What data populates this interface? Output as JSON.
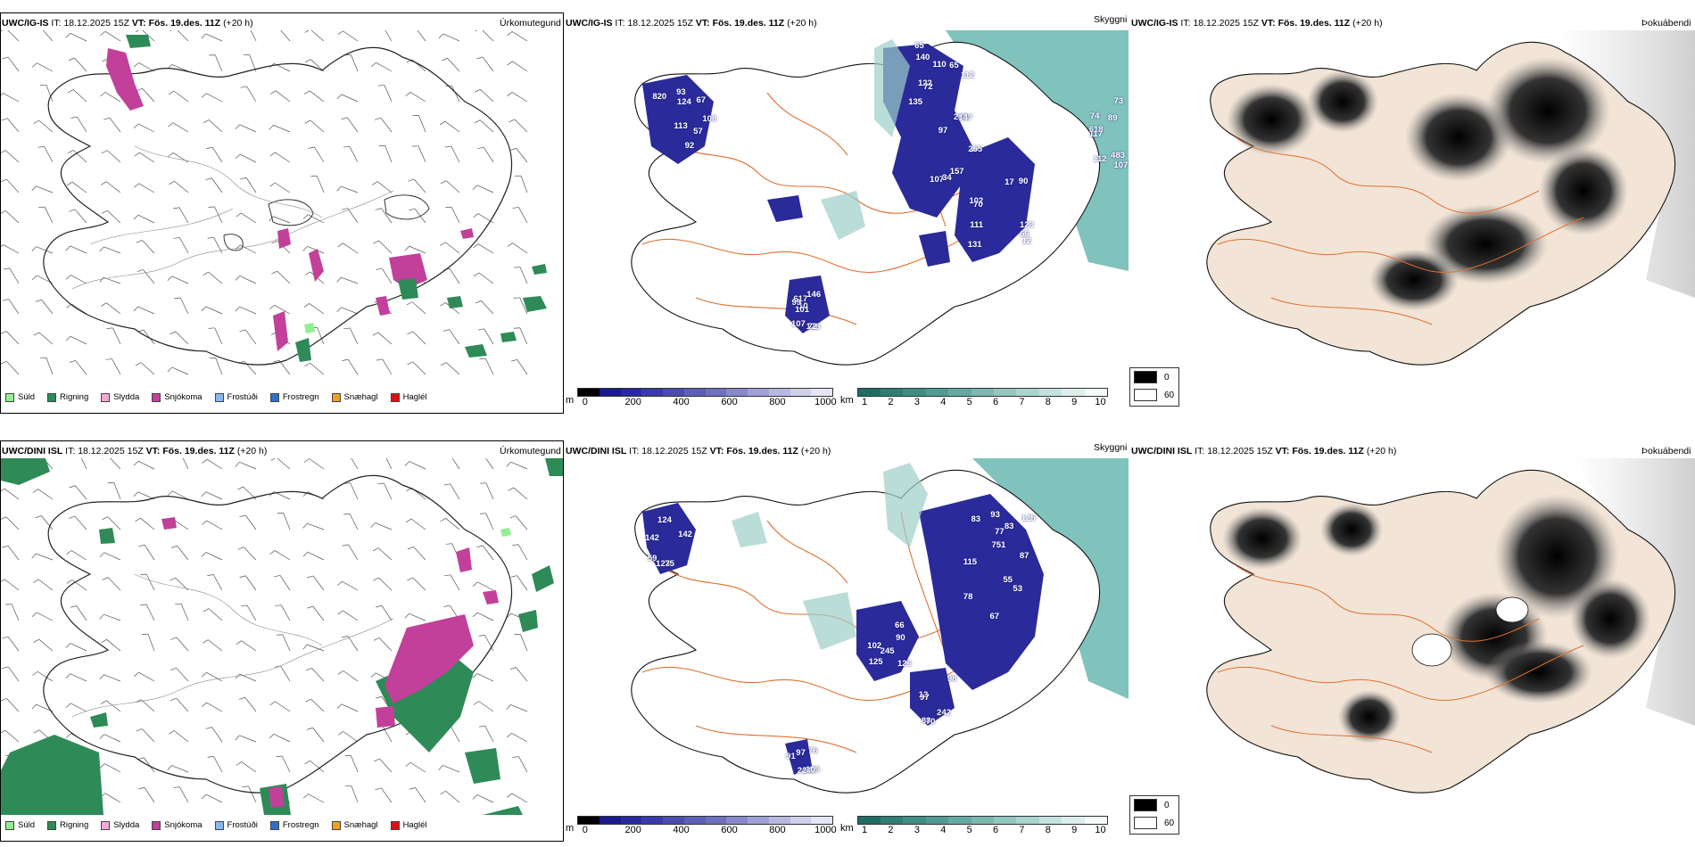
{
  "rows": [
    {
      "id": "top",
      "precip": {
        "model": "UWC/IG-IS",
        "it_label": "IT:",
        "it_value": "18.12.2025 15Z",
        "vt_label": "VT:",
        "vt_value": "Fös. 19.des. 11Z",
        "lead": "(+20 h)",
        "field": "Úrkomutegund"
      },
      "ceiling": {
        "model": "UWC/IG-IS",
        "it_label": "IT:",
        "it_value": "18.12.2025 15Z",
        "vt_label": "VT:",
        "vt_value": "Fös. 19.des. 11Z",
        "lead": "(+20 h)",
        "field": "Skyggni",
        "labels": [
          "140",
          "255",
          "17",
          "108",
          "10",
          "107",
          "122",
          "248",
          "123",
          "67",
          "617",
          "483",
          "65",
          "107",
          "111",
          "113",
          "101",
          "618",
          "65",
          "97",
          "12",
          "124",
          "107",
          "112",
          "110",
          "147",
          "131",
          "92",
          "128",
          "73",
          "135",
          "102",
          "70",
          "93",
          "99",
          "117",
          "112",
          "157",
          "90",
          "57",
          "72",
          "74",
          "72",
          "34",
          "66",
          "820",
          "146",
          "89"
        ]
      },
      "fog": {
        "model": "UWC/IG-IS",
        "it_label": "IT:",
        "it_value": "18.12.2025 15Z",
        "vt_label": "VT:",
        "vt_value": "Fös. 19.des. 11Z",
        "lead": "(+20 h)",
        "field": "Þokuábendi"
      }
    },
    {
      "id": "bottom",
      "precip": {
        "model": "UWC/DINI ISL",
        "it_label": "IT:",
        "it_value": "18.12.2025 15Z",
        "vt_label": "VT:",
        "vt_value": "Fös. 19.des. 11Z",
        "lead": "(+20 h)",
        "field": "Úrkomutegund"
      },
      "ceiling": {
        "model": "UWC/DINI ISL",
        "it_label": "IT:",
        "it_value": "18.12.2025 15Z",
        "vt_label": "VT:",
        "vt_value": "Fös. 19.des. 11Z",
        "lead": "(+20 h)",
        "field": "Skyggni",
        "labels": [
          "751",
          "115",
          "125",
          "13",
          "142",
          "446",
          "125",
          "78",
          "245",
          "88",
          "59",
          "91",
          "83",
          "67",
          "90",
          "98",
          "142",
          "76",
          "83",
          "53",
          "126",
          "242",
          "123",
          "109",
          "93",
          "55",
          "102",
          "97",
          "75",
          "97",
          "77",
          "87",
          "66",
          "70",
          "124",
          "22"
        ]
      },
      "fog": {
        "model": "UWC/DINI ISL",
        "it_label": "IT:",
        "it_value": "18.12.2025 15Z",
        "vt_label": "VT:",
        "vt_value": "Fös. 19.des. 11Z",
        "lead": "(+20 h)",
        "field": "Þokuábendi"
      }
    }
  ],
  "precip_legend": [
    {
      "label": "Súld",
      "color": "#90ee90"
    },
    {
      "label": "Rigning",
      "color": "#2e8b57"
    },
    {
      "label": "Slydda",
      "color": "#f4a6d7"
    },
    {
      "label": "Snjókoma",
      "color": "#c2409a"
    },
    {
      "label": "Frostúði",
      "color": "#87b8f0"
    },
    {
      "label": "Frostregn",
      "color": "#2f6fcf"
    },
    {
      "label": "Snæhagl",
      "color": "#f0a020"
    },
    {
      "label": "Haglél",
      "color": "#e01010"
    }
  ],
  "ceiling_scale": {
    "unit": "m",
    "ticks": [
      "0",
      "200",
      "400",
      "600",
      "800",
      "1000"
    ],
    "colors": [
      "#000000",
      "#1a1a8a",
      "#2828a0",
      "#3a3aa8",
      "#4c4cb0",
      "#5e5eb8",
      "#7070c0",
      "#8888cc",
      "#a0a0d8",
      "#b8b8e2",
      "#d0d0ec",
      "#e6e6f6"
    ]
  },
  "visibility_scale": {
    "unit": "km",
    "ticks": [
      "1",
      "2",
      "3",
      "4",
      "5",
      "6",
      "7",
      "8",
      "9",
      "10"
    ],
    "colors": [
      "#1e6e64",
      "#2e7e74",
      "#3e8e84",
      "#509c94",
      "#64aaa2",
      "#7ab8b0",
      "#92c6c0",
      "#aad4ce",
      "#c4e2de",
      "#dcefec",
      "#f4fbfa"
    ]
  },
  "fog_key": {
    "min": "0",
    "max": "60",
    "min_color": "#000000",
    "max_color": "#ffffff"
  },
  "colors": {
    "land_beige": "#f2e4d6",
    "road_orange": "#e07030",
    "sea_teal": "#6ab8b0",
    "ceiling_blue": "#2a2a9a"
  }
}
